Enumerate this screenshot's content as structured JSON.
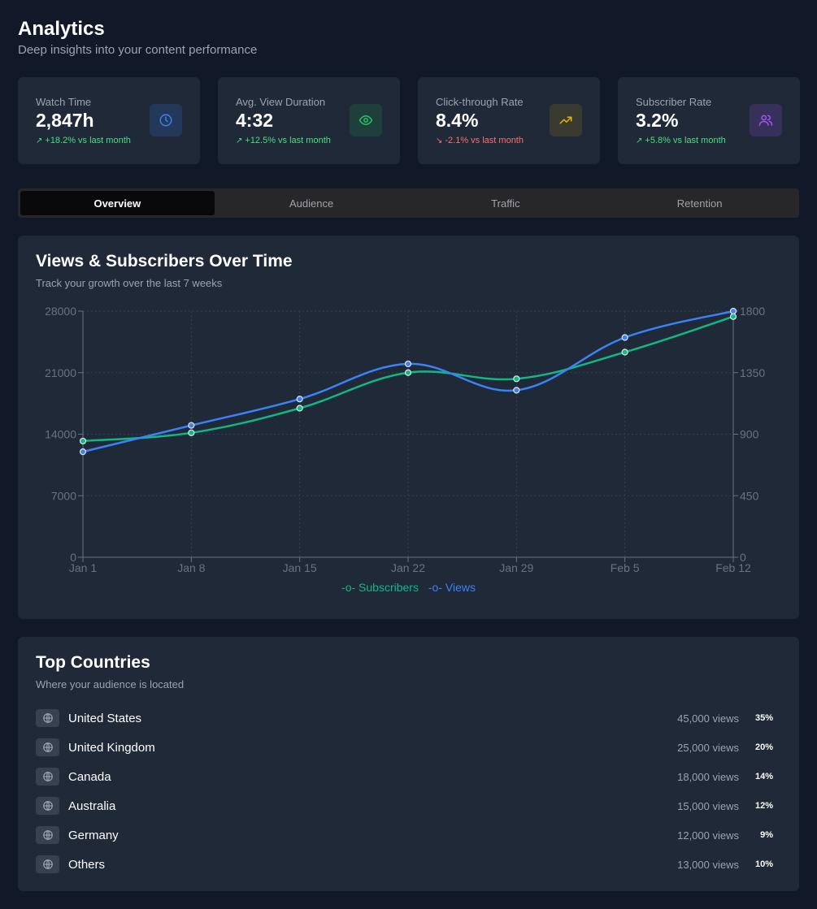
{
  "header": {
    "title": "Analytics",
    "subtitle": "Deep insights into your content performance"
  },
  "stats": [
    {
      "label": "Watch Time",
      "value": "2,847h",
      "change": "+18.2% vs last month",
      "trend": "up",
      "icon": "clock-icon",
      "color": "#3b82f6"
    },
    {
      "label": "Avg. View Duration",
      "value": "4:32",
      "change": "+12.5% vs last month",
      "trend": "up",
      "icon": "eye-icon",
      "color": "#22c55e"
    },
    {
      "label": "Click-through Rate",
      "value": "8.4%",
      "change": "-2.1% vs last month",
      "trend": "down",
      "icon": "trending-up-icon",
      "color": "#eab308"
    },
    {
      "label": "Subscriber Rate",
      "value": "3.2%",
      "change": "+5.8% vs last month",
      "trend": "up",
      "icon": "users-icon",
      "color": "#a855f7"
    }
  ],
  "tabs": [
    {
      "label": "Overview",
      "active": true
    },
    {
      "label": "Audience",
      "active": false
    },
    {
      "label": "Traffic",
      "active": false
    },
    {
      "label": "Retention",
      "active": false
    }
  ],
  "chart_panel": {
    "title": "Views & Subscribers Over Time",
    "subtitle": "Track your growth over the last 7 weeks"
  },
  "chart_data": {
    "type": "line",
    "categories": [
      "Jan 1",
      "Jan 8",
      "Jan 15",
      "Jan 22",
      "Jan 29",
      "Feb 5",
      "Feb 12"
    ],
    "series": [
      {
        "name": "Subscribers",
        "axis": "right",
        "color": "#10b981",
        "values": [
          850,
          910,
          1090,
          1350,
          1305,
          1500,
          1760
        ]
      },
      {
        "name": "Views",
        "axis": "left",
        "color": "#3b82f6",
        "values": [
          12000,
          15000,
          18000,
          22000,
          19000,
          25000,
          28000
        ]
      }
    ],
    "y_left": {
      "ticks": [
        0,
        7000,
        14000,
        21000,
        28000
      ],
      "range": [
        0,
        28000
      ]
    },
    "y_right": {
      "ticks": [
        0,
        450,
        900,
        1350,
        1800
      ],
      "range": [
        0,
        1800
      ]
    },
    "grid": true,
    "legend": "bottom"
  },
  "countries_panel": {
    "title": "Top Countries",
    "subtitle": "Where your audience is located",
    "rows": [
      {
        "name": "United States",
        "views": "45,000 views",
        "pct": "35%"
      },
      {
        "name": "United Kingdom",
        "views": "25,000 views",
        "pct": "20%"
      },
      {
        "name": "Canada",
        "views": "18,000 views",
        "pct": "14%"
      },
      {
        "name": "Australia",
        "views": "15,000 views",
        "pct": "12%"
      },
      {
        "name": "Germany",
        "views": "12,000 views",
        "pct": "9%"
      },
      {
        "name": "Others",
        "views": "13,000 views",
        "pct": "10%"
      }
    ]
  }
}
